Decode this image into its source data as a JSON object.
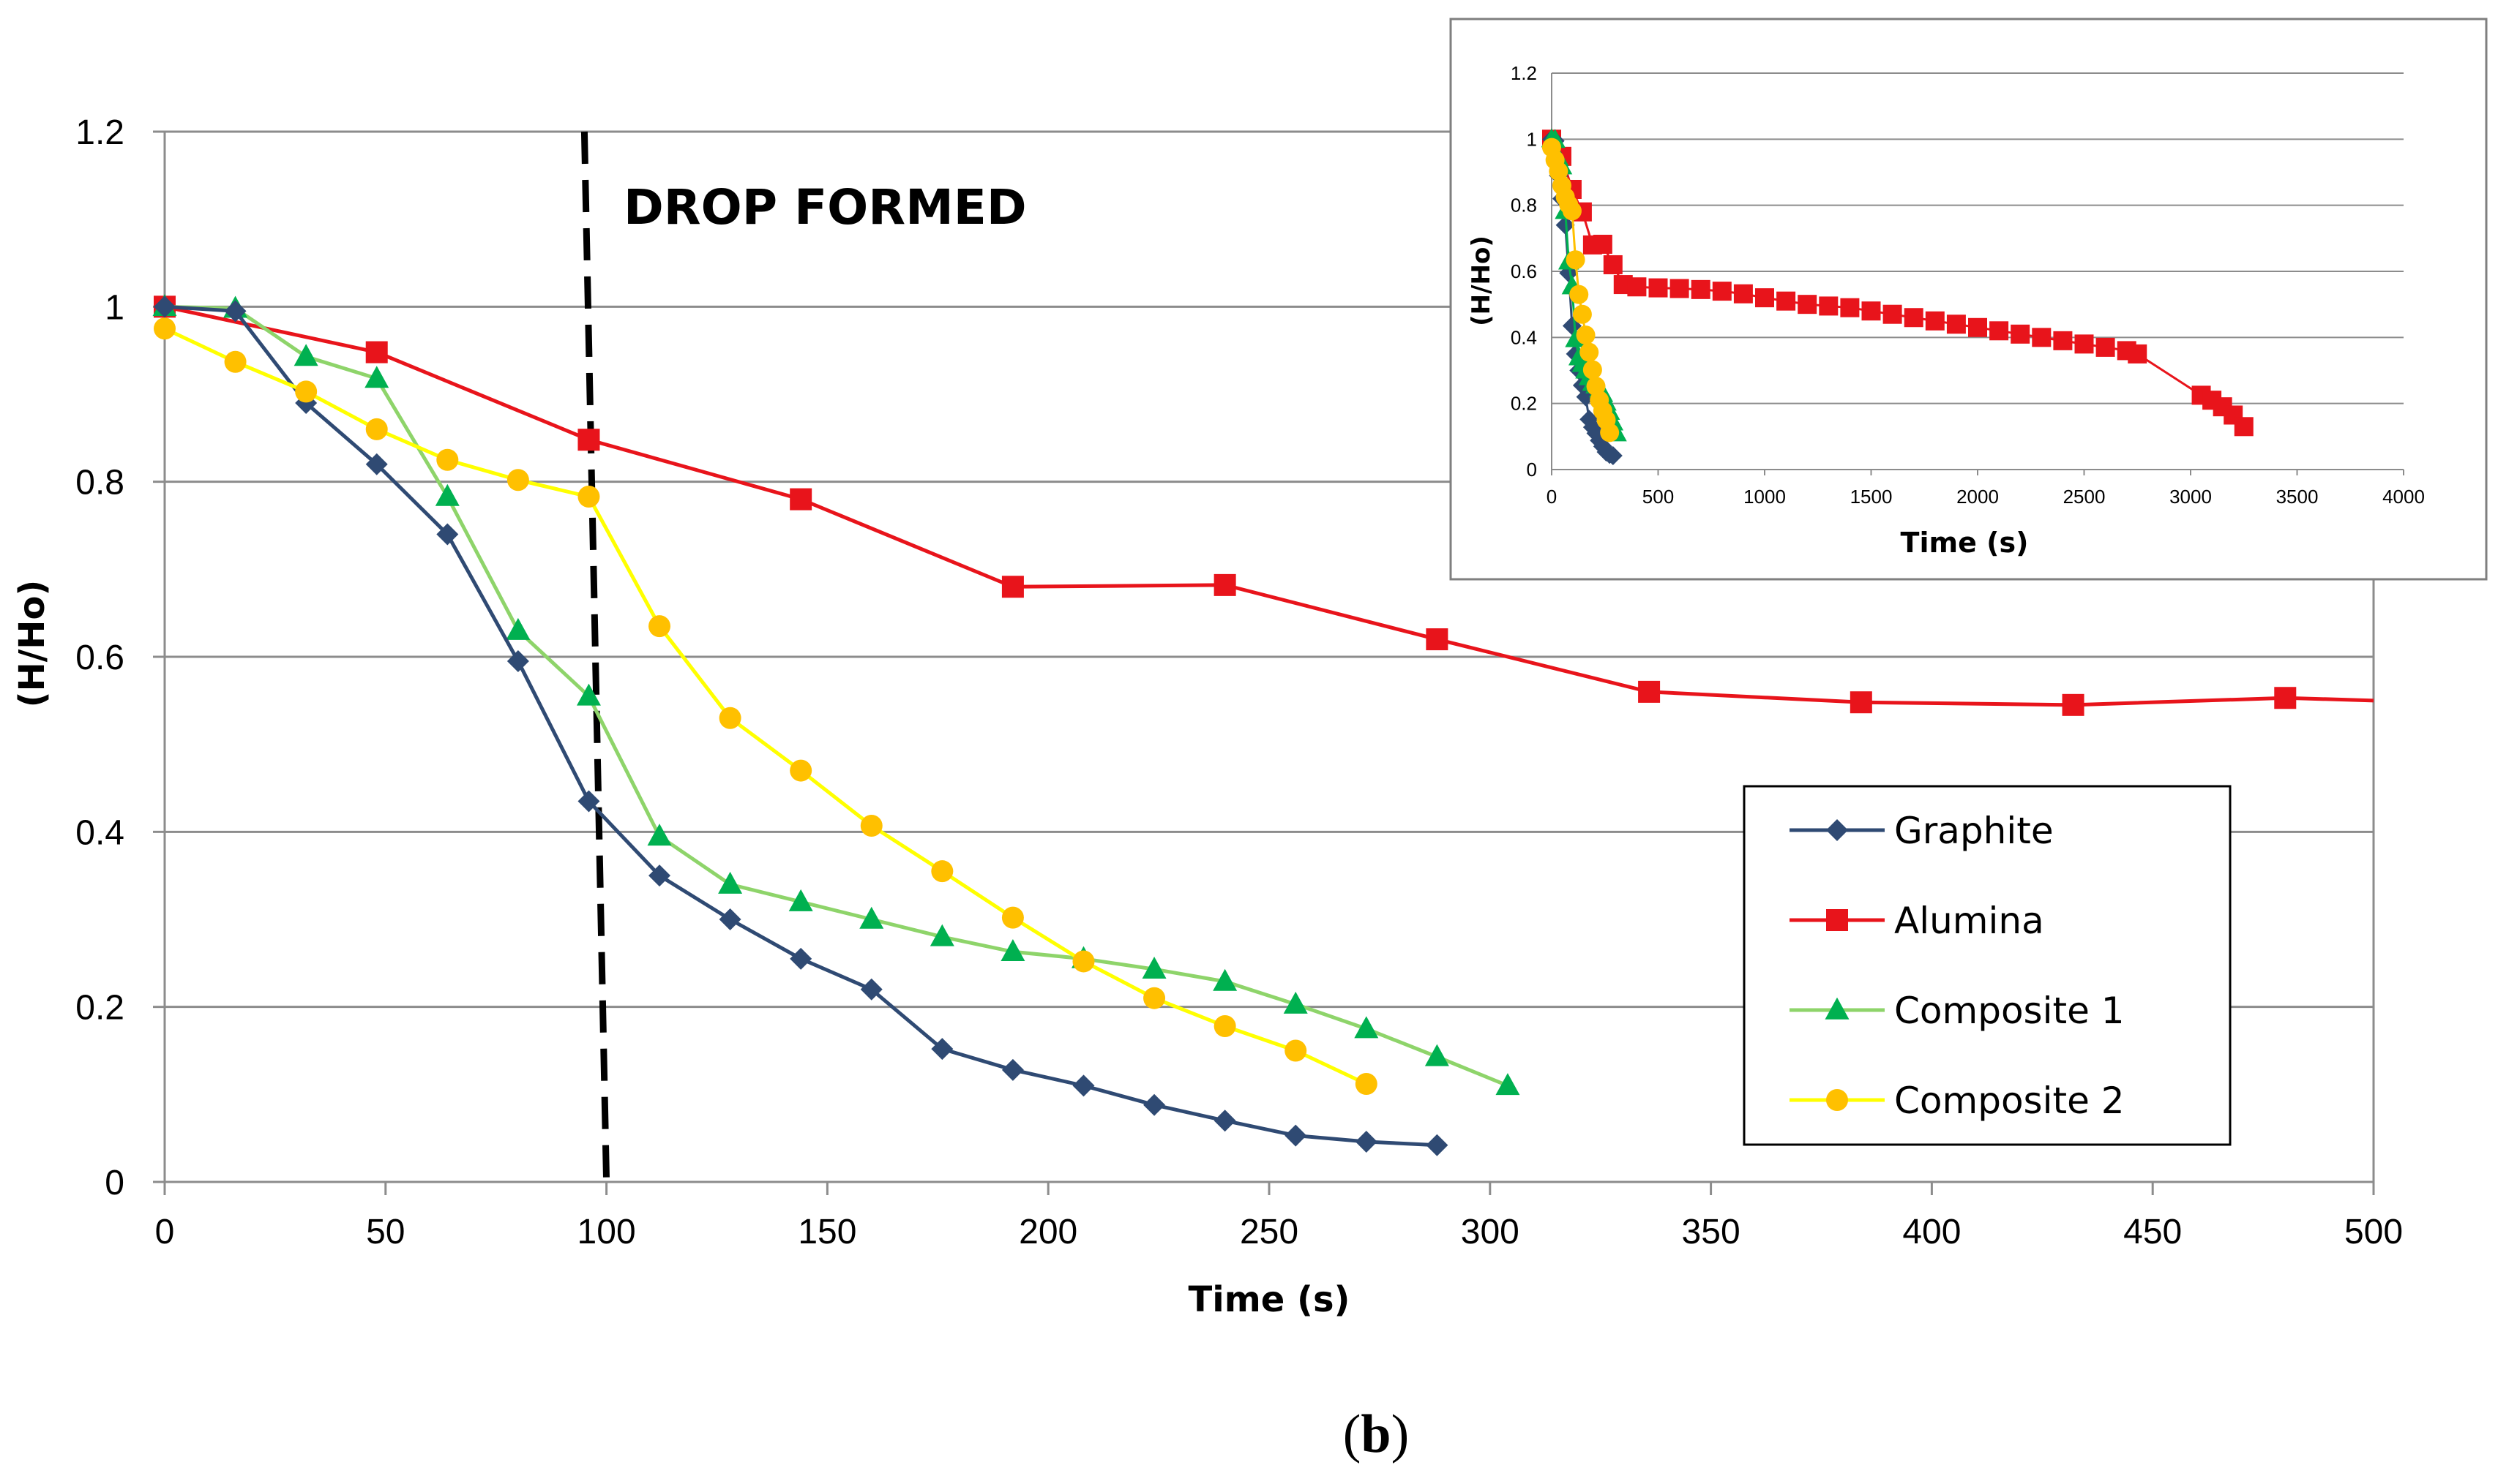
{
  "chart_data": [
    {
      "type": "line",
      "name": "main",
      "xlabel": "Time (s)",
      "ylabel": "(H/Ho)",
      "xlim": [
        0,
        500
      ],
      "ylim": [
        0,
        1.2
      ],
      "xticks": [
        0,
        50,
        100,
        150,
        200,
        250,
        300,
        350,
        400,
        450,
        500
      ],
      "yticks": [
        0,
        0.2,
        0.4,
        0.6,
        0.8,
        1,
        1.2
      ],
      "ytick_labels": [
        "0",
        "0.2",
        "0.4",
        "0.6",
        "0.8",
        "1",
        "1.2"
      ],
      "grid": "horizontal",
      "annotation": {
        "text": "DROP FORMED",
        "line_x_start": 95,
        "line_x_end": 100
      },
      "legend_position": "lower-right",
      "series": [
        {
          "name": "Graphite",
          "color": "#2f4a73",
          "marker": "diamond",
          "x": [
            0,
            16,
            32,
            48,
            64,
            80,
            96,
            112,
            128,
            144,
            160,
            176,
            192,
            208,
            224,
            240,
            256,
            272,
            288
          ],
          "y": [
            1.0,
            0.995,
            0.89,
            0.82,
            0.74,
            0.595,
            0.435,
            0.35,
            0.3,
            0.255,
            0.22,
            0.152,
            0.128,
            0.11,
            0.088,
            0.07,
            0.053,
            0.046,
            0.042
          ]
        },
        {
          "name": "Alumina",
          "color": "#e8141b",
          "marker": "square",
          "x": [
            0,
            48,
            96,
            144,
            192,
            240,
            288,
            336,
            384,
            432,
            480,
            500
          ],
          "y": [
            1.0,
            0.948,
            0.848,
            0.78,
            0.68,
            0.682,
            0.62,
            0.56,
            0.548,
            0.545,
            0.553,
            0.55
          ],
          "markers_shown": 11
        },
        {
          "name": "Composite 1",
          "color": "#00b050",
          "marker": "triangle",
          "line_color": "#8ed46a",
          "x": [
            0,
            16,
            32,
            48,
            64,
            80,
            96,
            112,
            128,
            144,
            160,
            176,
            192,
            208,
            224,
            240,
            256,
            272,
            288,
            304
          ],
          "y": [
            1.0,
            0.998,
            0.943,
            0.918,
            0.783,
            0.63,
            0.555,
            0.395,
            0.34,
            0.32,
            0.3,
            0.28,
            0.263,
            0.255,
            0.243,
            0.229,
            0.203,
            0.175,
            0.143,
            0.11
          ]
        },
        {
          "name": "Composite 2",
          "color": "#ffc000",
          "marker": "circle",
          "line_color": "#ffff00",
          "x": [
            0,
            16,
            32,
            48,
            64,
            80,
            96,
            112,
            128,
            144,
            160,
            176,
            192,
            208,
            224,
            240,
            256,
            272
          ],
          "y": [
            0.975,
            0.937,
            0.903,
            0.86,
            0.825,
            0.802,
            0.783,
            0.635,
            0.53,
            0.47,
            0.407,
            0.355,
            0.302,
            0.252,
            0.21,
            0.178,
            0.15,
            0.112
          ]
        }
      ]
    },
    {
      "type": "line",
      "name": "inset",
      "xlabel": "Time (s)",
      "ylabel": "(H/Ho)",
      "xlim": [
        0,
        4000
      ],
      "ylim": [
        0,
        1.2
      ],
      "xticks": [
        0,
        500,
        1000,
        1500,
        2000,
        2500,
        3000,
        3500,
        4000
      ],
      "yticks": [
        0,
        0.2,
        0.4,
        0.6,
        0.8,
        1,
        1.2
      ],
      "ytick_labels": [
        "0",
        "0.2",
        "0.4",
        "0.6",
        "0.8",
        "1",
        "1.2"
      ],
      "grid": "horizontal",
      "series": [
        {
          "name": "Alumina",
          "color": "#e8141b",
          "marker": "square",
          "x": [
            0,
            48,
            96,
            144,
            192,
            240,
            288,
            336,
            400,
            500,
            600,
            700,
            800,
            900,
            1000,
            1100,
            1200,
            1300,
            1400,
            1500,
            1600,
            1700,
            1800,
            1900,
            2000,
            2100,
            2200,
            2300,
            2400,
            2500,
            2600,
            2700,
            2750,
            3050,
            3100,
            3150,
            3200,
            3250
          ],
          "y": [
            1.0,
            0.948,
            0.848,
            0.78,
            0.68,
            0.682,
            0.62,
            0.56,
            0.553,
            0.55,
            0.548,
            0.545,
            0.54,
            0.532,
            0.52,
            0.51,
            0.5,
            0.495,
            0.49,
            0.48,
            0.47,
            0.46,
            0.45,
            0.44,
            0.43,
            0.42,
            0.41,
            0.4,
            0.39,
            0.38,
            0.37,
            0.36,
            0.35,
            0.225,
            0.21,
            0.19,
            0.165,
            0.13
          ]
        },
        {
          "name": "Graphite",
          "color": "#2f4a73",
          "marker": "diamond",
          "x": [
            0,
            16,
            32,
            48,
            64,
            80,
            96,
            112,
            128,
            144,
            160,
            176,
            192,
            208,
            224,
            240,
            256,
            272,
            288
          ],
          "y": [
            1.0,
            0.995,
            0.89,
            0.82,
            0.74,
            0.595,
            0.435,
            0.35,
            0.3,
            0.255,
            0.22,
            0.152,
            0.128,
            0.11,
            0.088,
            0.07,
            0.053,
            0.046,
            0.042
          ]
        },
        {
          "name": "Composite 1",
          "color": "#00b050",
          "marker": "triangle",
          "x": [
            0,
            16,
            32,
            48,
            64,
            80,
            96,
            112,
            128,
            144,
            160,
            176,
            192,
            208,
            224,
            240,
            256,
            272,
            288,
            304
          ],
          "y": [
            1.0,
            0.998,
            0.943,
            0.918,
            0.783,
            0.63,
            0.555,
            0.395,
            0.34,
            0.32,
            0.3,
            0.28,
            0.263,
            0.255,
            0.243,
            0.229,
            0.203,
            0.175,
            0.143,
            0.11
          ]
        },
        {
          "name": "Composite 2",
          "color": "#ffc000",
          "marker": "circle",
          "x": [
            0,
            16,
            32,
            48,
            64,
            80,
            96,
            112,
            128,
            144,
            160,
            176,
            192,
            208,
            224,
            240,
            256,
            272
          ],
          "y": [
            0.975,
            0.937,
            0.903,
            0.86,
            0.825,
            0.802,
            0.783,
            0.635,
            0.53,
            0.47,
            0.407,
            0.355,
            0.302,
            0.252,
            0.21,
            0.178,
            0.15,
            0.112
          ]
        }
      ]
    }
  ],
  "caption": {
    "open": "(",
    "letter": "b",
    "close": ")"
  }
}
